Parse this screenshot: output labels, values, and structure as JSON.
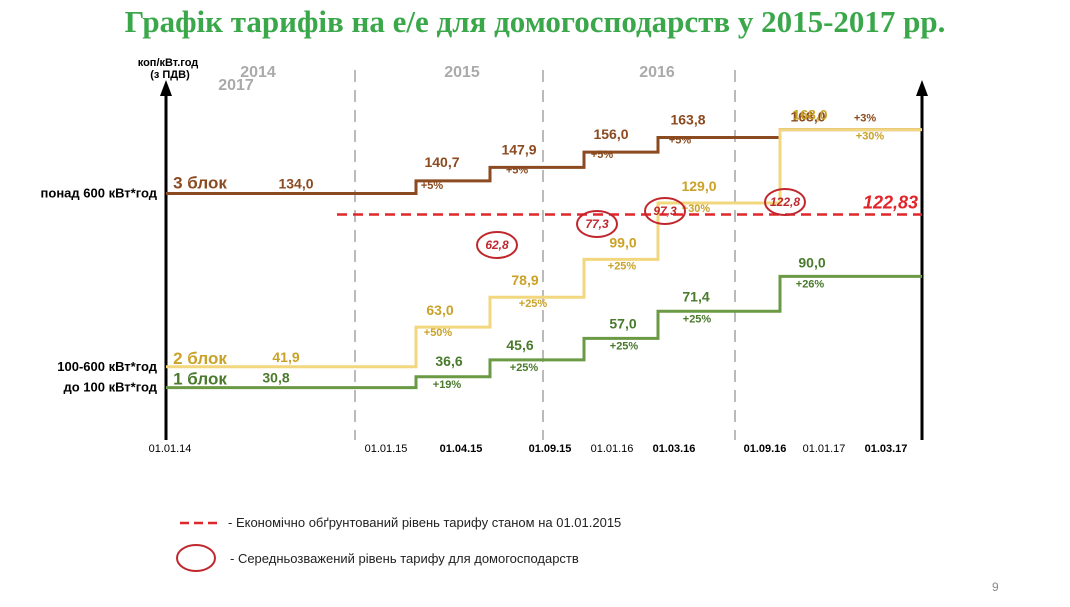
{
  "title": "Графік тарифів на е/е для домогосподарств у 2015-2017 рр.",
  "page_number": "9",
  "chart_data": {
    "type": "line",
    "step": true,
    "title": "Графік тарифів на е/е для домогосподарств у 2015-2017 рр.",
    "ylabel": "коп/кВт.год",
    "ylabel_sub": "(з ПДВ)",
    "year_labels": [
      "2014",
      "2015",
      "2016",
      "2017"
    ],
    "x_dates": [
      "01.01.14",
      "01.01.15",
      "01.04.15",
      "01.09.15",
      "01.01.16",
      "01.03.16",
      "01.09.16",
      "01.01.17",
      "01.03.17"
    ],
    "bold_dates": [
      "01.04.15",
      "01.09.15",
      "01.03.16",
      "01.09.16",
      "01.03.17"
    ],
    "divider_dates": [
      "01.01.15",
      "01.09.15",
      "01.09.16"
    ],
    "ylim": [
      20,
      180
    ],
    "series": [
      {
        "name": "3 блок",
        "category": "понад 600 кВт*год",
        "color": "#8b4a1f",
        "points": [
          {
            "x": "01.01.14",
            "y": 134.0,
            "label": "134,0",
            "pct": ""
          },
          {
            "x": "01.04.15",
            "y": 140.7,
            "label": "140,7",
            "pct": "+5%"
          },
          {
            "x": "01.09.15",
            "y": 147.9,
            "label": "147,9",
            "pct": "+5%"
          },
          {
            "x": "01.01.16",
            "y": 156.0,
            "label": "156,0",
            "pct": "+5%"
          },
          {
            "x": "01.03.16",
            "y": 163.8,
            "label": "163,8",
            "pct": "+5%"
          },
          {
            "x": "01.01.17",
            "y": 168.0,
            "label": "168,0",
            "pct": "+3%"
          }
        ]
      },
      {
        "name": "2 блок",
        "category": "100-600 кВт*год",
        "color": "#c9a227",
        "line_color": "#f2d77f",
        "points": [
          {
            "x": "01.01.14",
            "y": 41.9,
            "label": "41,9",
            "pct": ""
          },
          {
            "x": "01.04.15",
            "y": 63.0,
            "label": "63,0",
            "pct": "+50%"
          },
          {
            "x": "01.09.15",
            "y": 78.9,
            "label": "78,9",
            "pct": "+25%"
          },
          {
            "x": "01.01.16",
            "y": 99.0,
            "label": "99,0",
            "pct": "+25%"
          },
          {
            "x": "01.03.16",
            "y": 129.0,
            "label": "129,0",
            "pct": "+30%"
          },
          {
            "x": "01.01.17",
            "y": 168.0,
            "label": "168,0",
            "pct": "+30%"
          }
        ]
      },
      {
        "name": "1 блок",
        "category": "до 100 кВт*год",
        "color": "#4a7a2c",
        "line_color": "#6b9a45",
        "points": [
          {
            "x": "01.01.14",
            "y": 30.8,
            "label": "30,8",
            "pct": ""
          },
          {
            "x": "01.04.15",
            "y": 36.6,
            "label": "36,6",
            "pct": "+19%"
          },
          {
            "x": "01.09.15",
            "y": 45.6,
            "label": "45,6",
            "pct": "+25%"
          },
          {
            "x": "01.01.16",
            "y": 57.0,
            "label": "57,0",
            "pct": "+25%"
          },
          {
            "x": "01.03.16",
            "y": 71.4,
            "label": "71,4",
            "pct": "+25%"
          },
          {
            "x": "01.01.17",
            "y": 90.0,
            "label": "90,0",
            "pct": "+26%"
          }
        ]
      }
    ],
    "economic_level": {
      "y": 122.83,
      "label": "122,83",
      "from": "01.01.15",
      "color": "#e0262b"
    },
    "weighted_averages": [
      {
        "x": "01.04.15",
        "label": "62,8"
      },
      {
        "x": "01.09.15",
        "label": "77,3"
      },
      {
        "x": "01.01.16",
        "label": "97,3"
      },
      {
        "x": "01.03.16",
        "label": "122,8"
      }
    ],
    "legend": [
      {
        "type": "dashed-line",
        "color": "#e0262b",
        "label": "- Економічно обґрунтований рівень тарифу станом на 01.01.2015"
      },
      {
        "type": "ellipse",
        "color": "#c0272d",
        "label": "- Середньозважений рівень тарифу для домогосподарств"
      }
    ]
  }
}
